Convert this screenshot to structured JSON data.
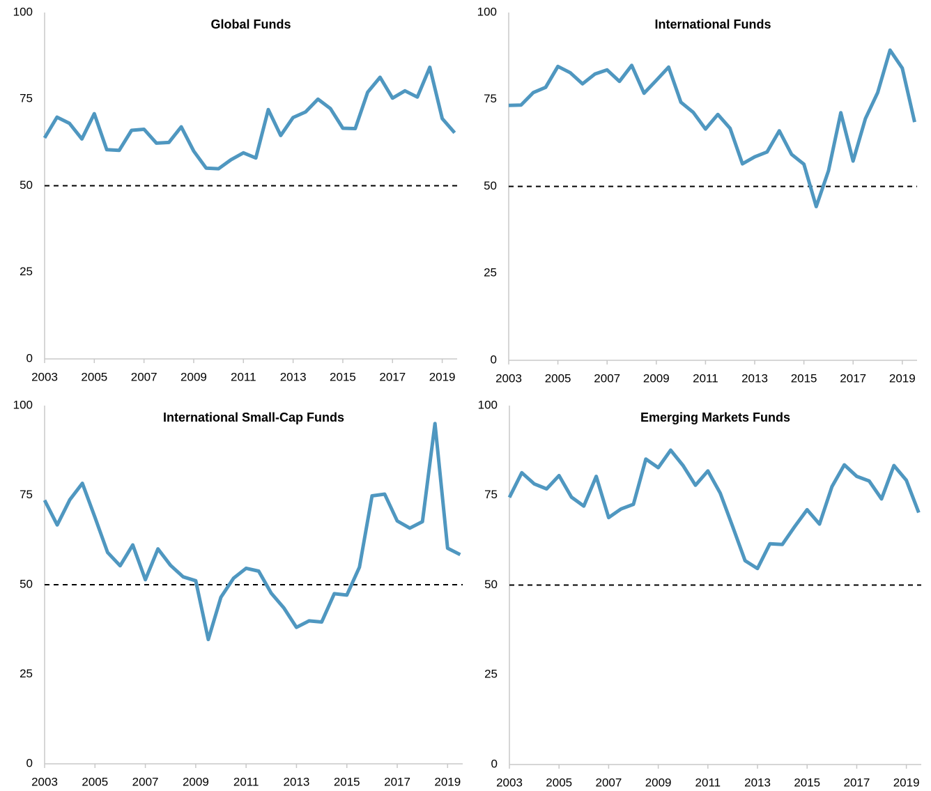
{
  "chart_data": [
    {
      "type": "line",
      "title": "Global Funds",
      "x": [
        2003,
        2003.5,
        2004,
        2004.5,
        2005,
        2005.5,
        2006,
        2006.5,
        2007,
        2007.5,
        2008,
        2008.5,
        2009,
        2009.5,
        2010,
        2010.5,
        2011,
        2011.5,
        2012,
        2012.5,
        2013,
        2013.5,
        2014,
        2014.5,
        2015,
        2015.5,
        2016,
        2016.5,
        2017,
        2017.5,
        2018,
        2018.5,
        2019,
        2019.5
      ],
      "series": [
        {
          "color": "#4f97c0",
          "values": [
            63.8,
            69.8,
            68,
            63.5,
            70.8,
            60.4,
            60.2,
            66,
            66.3,
            62.3,
            62.5,
            67,
            60,
            55.1,
            54.9,
            57.5,
            59.5,
            58,
            72,
            64.5,
            69.7,
            71.3,
            75,
            72.3,
            66.6,
            66.5,
            77,
            81.3,
            75.3,
            77.4,
            75.6,
            84.2,
            69.4,
            65.3
          ]
        }
      ],
      "reference_line": 50,
      "xlim": [
        2003,
        2019.6
      ],
      "xticks": [
        2003,
        2005,
        2007,
        2009,
        2011,
        2013,
        2015,
        2017,
        2019
      ],
      "ylim": [
        0,
        100
      ],
      "yticks": [
        0,
        25,
        50,
        75,
        100
      ],
      "grid": false
    },
    {
      "type": "line",
      "title": "International Funds",
      "x": [
        2003,
        2003.5,
        2004,
        2004.5,
        2005,
        2005.5,
        2006,
        2006.5,
        2007,
        2007.5,
        2008,
        2008.5,
        2009,
        2009.5,
        2010,
        2010.5,
        2011,
        2011.5,
        2012,
        2012.5,
        2013,
        2013.5,
        2014,
        2014.5,
        2015,
        2015.5,
        2016,
        2016.5,
        2017,
        2017.5,
        2018,
        2018.5,
        2019,
        2019.5
      ],
      "series": [
        {
          "color": "#4f97c0",
          "values": [
            73.3,
            73.4,
            77,
            78.5,
            84.5,
            82.7,
            79.5,
            82.3,
            83.5,
            80.2,
            84.8,
            76.8,
            80.5,
            84.3,
            74.2,
            71.3,
            66.5,
            70.7,
            66.7,
            56.5,
            58.5,
            59.9,
            66,
            59.2,
            56.4,
            44.2,
            54.5,
            71.2,
            57.3,
            69.5,
            77,
            89.2,
            84,
            68.5
          ]
        }
      ],
      "reference_line": 50,
      "xlim": [
        2003,
        2019.6
      ],
      "xticks": [
        2003,
        2005,
        2007,
        2009,
        2011,
        2013,
        2015,
        2017,
        2019
      ],
      "ylim": [
        0,
        100
      ],
      "yticks": [
        0,
        25,
        50,
        75,
        100
      ],
      "grid": false
    },
    {
      "type": "line",
      "title": "International Small-Cap Funds",
      "x": [
        2003,
        2003.5,
        2004,
        2004.5,
        2005,
        2005.5,
        2006,
        2006.5,
        2007,
        2007.5,
        2008,
        2008.5,
        2009,
        2009.5,
        2010,
        2010.5,
        2011,
        2011.5,
        2012,
        2012.5,
        2013,
        2013.5,
        2014,
        2014.5,
        2015,
        2015.5,
        2016,
        2016.5,
        2017,
        2017.5,
        2018,
        2018.5,
        2019,
        2019.5
      ],
      "series": [
        {
          "color": "#4f97c0",
          "values": [
            73.6,
            66.7,
            73.7,
            78.3,
            68.8,
            59,
            55.3,
            61.1,
            51.4,
            60,
            55.4,
            52.2,
            51.1,
            34.7,
            46.5,
            51.8,
            54.6,
            53.8,
            47.6,
            43.5,
            38.1,
            39.9,
            39.6,
            47.5,
            47.1,
            54.9,
            74.8,
            75.3,
            67.8,
            65.8,
            67.6,
            95,
            60.2,
            58.4
          ]
        }
      ],
      "reference_line": 50,
      "xlim": [
        2003,
        2019.6
      ],
      "xticks": [
        2003,
        2005,
        2007,
        2009,
        2011,
        2013,
        2015,
        2017,
        2019
      ],
      "ylim": [
        0,
        100
      ],
      "yticks": [
        0,
        25,
        50,
        75,
        100
      ],
      "grid": false
    },
    {
      "type": "line",
      "title": "Emerging Markets Funds",
      "x": [
        2003,
        2003.5,
        2004,
        2004.5,
        2005,
        2005.5,
        2006,
        2006.5,
        2007,
        2007.5,
        2008,
        2008.5,
        2009,
        2009.5,
        2010,
        2010.5,
        2011,
        2011.5,
        2012,
        2012.5,
        2013,
        2013.5,
        2014,
        2014.5,
        2015,
        2015.5,
        2016,
        2016.5,
        2017,
        2017.5,
        2018,
        2018.5,
        2019,
        2019.5
      ],
      "series": [
        {
          "color": "#4f97c0",
          "values": [
            74.4,
            81.3,
            78.2,
            76.8,
            80.5,
            74.5,
            72,
            80.3,
            68.8,
            71.2,
            72.5,
            85.1,
            82.7,
            87.6,
            83.3,
            77.8,
            81.8,
            75.6,
            66.3,
            56.8,
            54.6,
            61.5,
            61.3,
            66.3,
            71,
            67,
            77.4,
            83.5,
            80.3,
            79,
            74,
            83.3,
            79.2,
            70.2
          ]
        }
      ],
      "reference_line": 50,
      "xlim": [
        2003,
        2019.6
      ],
      "xticks": [
        2003,
        2005,
        2007,
        2009,
        2011,
        2013,
        2015,
        2017,
        2019
      ],
      "ylim": [
        0,
        100
      ],
      "yticks": [
        0,
        25,
        50,
        75,
        100
      ],
      "grid": false
    }
  ]
}
